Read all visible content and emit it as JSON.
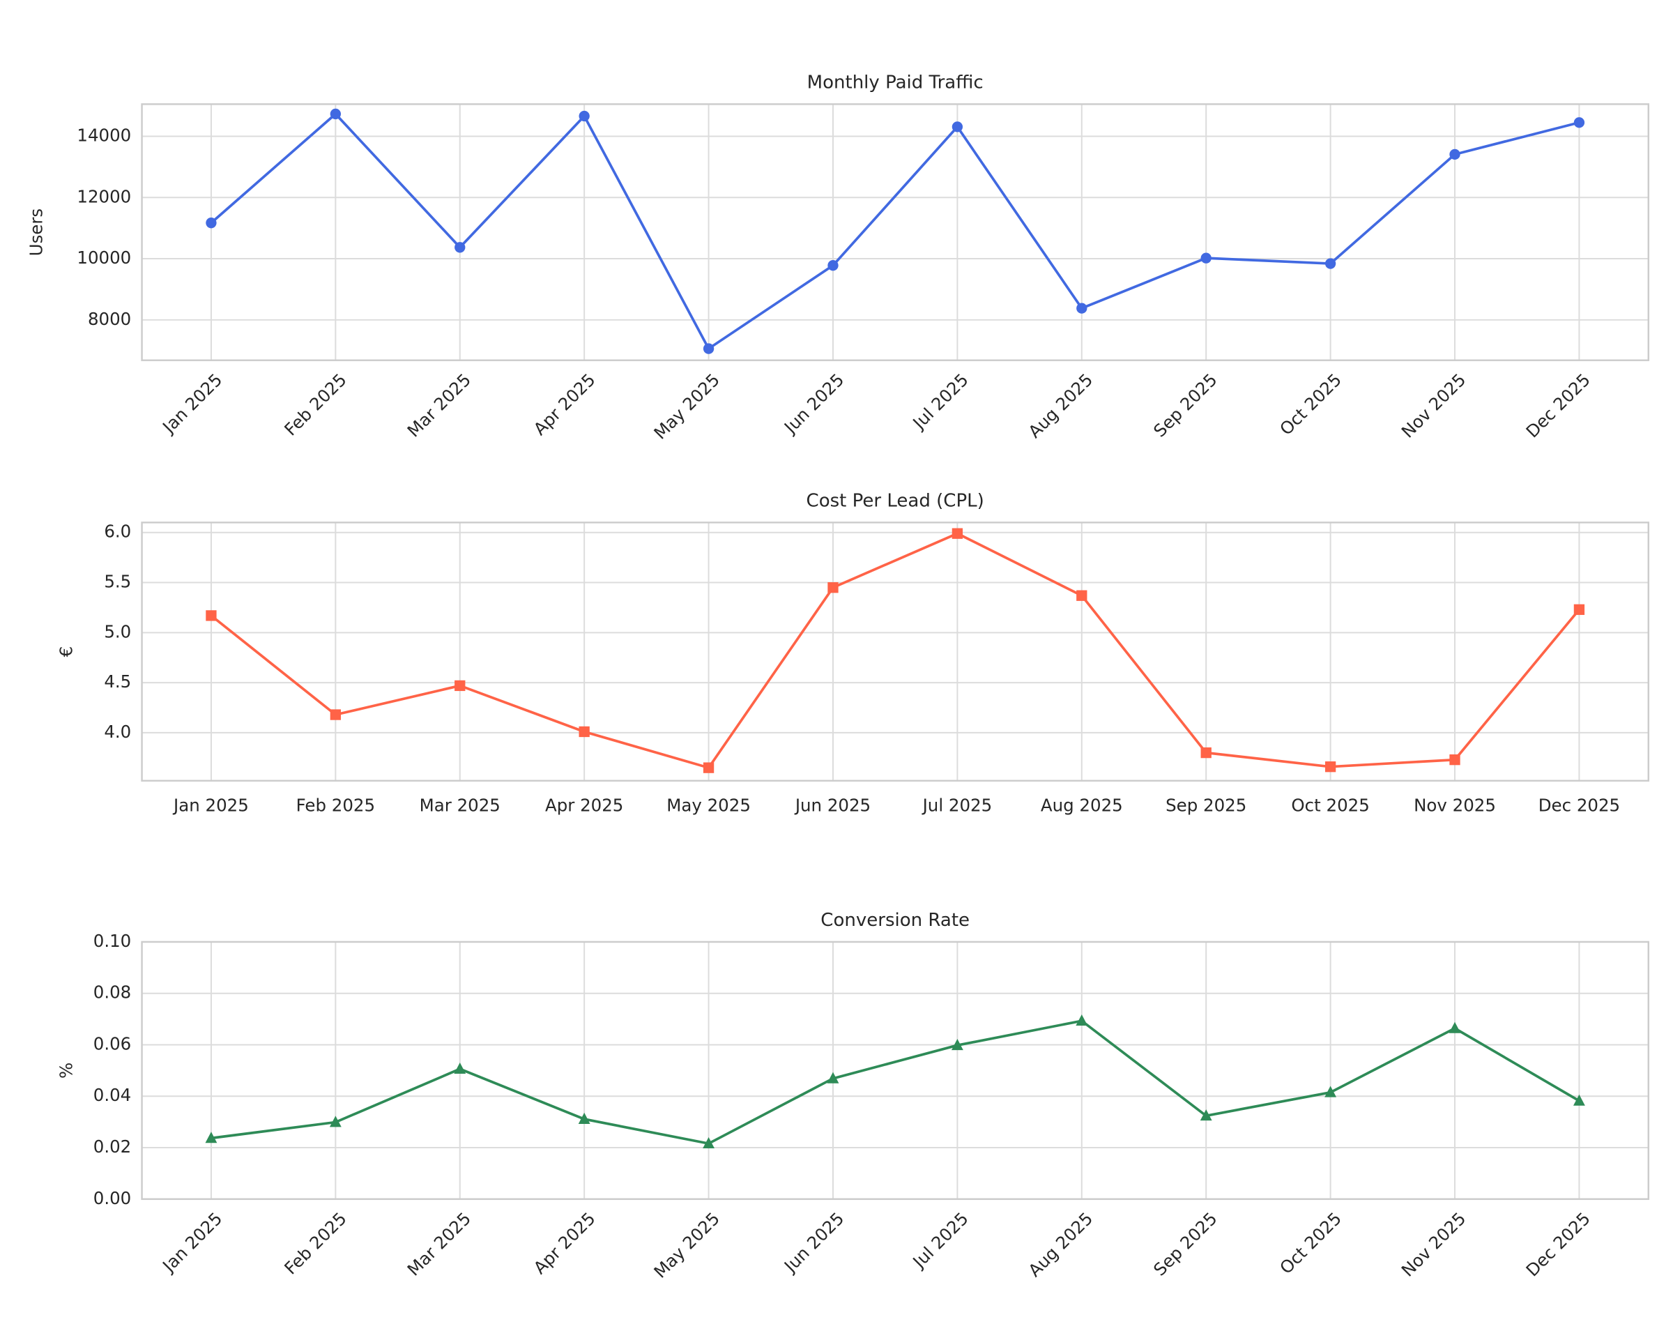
{
  "chart_data": [
    {
      "type": "line",
      "title": "Monthly Paid Traffic",
      "y_label": "Users",
      "categories": [
        "Jan 2025",
        "Feb 2025",
        "Mar 2025",
        "Apr 2025",
        "May 2025",
        "Jun 2025",
        "Jul 2025",
        "Aug 2025",
        "Sep 2025",
        "Oct 2025",
        "Nov 2025",
        "Dec 2025"
      ],
      "values": [
        11170,
        14730,
        10370,
        14660,
        7060,
        9780,
        14310,
        8380,
        10020,
        9840,
        13410,
        14450
      ],
      "color": "#4169e1",
      "marker": "circle",
      "xtick_rotation": 45,
      "grid": true,
      "ylim": [
        6680,
        15050
      ],
      "yticks": [
        8000,
        10000,
        12000,
        14000
      ]
    },
    {
      "type": "line",
      "title": "Cost Per Lead (CPL)",
      "y_label": "€",
      "categories": [
        "Jan 2025",
        "Feb 2025",
        "Mar 2025",
        "Apr 2025",
        "May 2025",
        "Jun 2025",
        "Jul 2025",
        "Aug 2025",
        "Sep 2025",
        "Oct 2025",
        "Nov 2025",
        "Dec 2025"
      ],
      "values": [
        5.17,
        4.18,
        4.47,
        4.01,
        3.65,
        5.45,
        5.99,
        5.37,
        3.8,
        3.66,
        3.73,
        5.23
      ],
      "color": "#ff6347",
      "marker": "square",
      "xtick_rotation": 0,
      "grid": true,
      "ylim": [
        3.52,
        6.1
      ],
      "yticks": [
        {
          "value": 4,
          "label": "4.0"
        },
        {
          "value": 4.5,
          "label": "4.5"
        },
        {
          "value": 5,
          "label": "5.0"
        },
        {
          "value": 5.5,
          "label": "5.5"
        },
        {
          "value": 6,
          "label": "6.0"
        }
      ]
    },
    {
      "type": "line",
      "title": "Conversion Rate",
      "y_label": "%",
      "categories": [
        "Jan 2025",
        "Feb 2025",
        "Mar 2025",
        "Apr 2025",
        "May 2025",
        "Jun 2025",
        "Jul 2025",
        "Aug 2025",
        "Sep 2025",
        "Oct 2025",
        "Nov 2025",
        "Dec 2025"
      ],
      "values": [
        0.0237,
        0.0299,
        0.0506,
        0.0311,
        0.0216,
        0.0469,
        0.0598,
        0.0693,
        0.0324,
        0.0415,
        0.0664,
        0.0382
      ],
      "color": "#2e8b57",
      "marker": "triangle",
      "xtick_rotation": 45,
      "grid": true,
      "ylim": [
        0,
        0.1
      ],
      "yticks": [
        {
          "value": 0,
          "label": "0.00"
        },
        {
          "value": 0.02,
          "label": "0.02"
        },
        {
          "value": 0.04,
          "label": "0.04"
        },
        {
          "value": 0.06,
          "label": "0.06"
        },
        {
          "value": 0.08,
          "label": "0.08"
        },
        {
          "value": 0.1,
          "label": "0.10"
        }
      ]
    }
  ]
}
